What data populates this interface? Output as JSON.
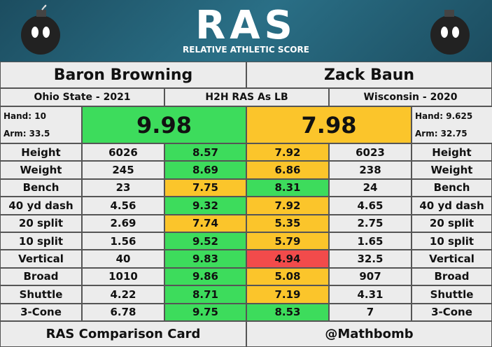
{
  "header": {
    "logo": "RAS",
    "tagline": "RELATIVE ATHLETIC SCORE"
  },
  "players": [
    {
      "name": "Baron Browning",
      "school": "Ohio State - 2021",
      "hand": "Hand: 10",
      "arm": "Arm: 33.5",
      "ras": 9.98,
      "ras_color": "#3ddc5c"
    },
    {
      "name": "Zack Baun",
      "school": "Wisconsin - 2020",
      "hand": "Hand: 9.625",
      "arm": "Arm: 32.75",
      "ras": 7.98,
      "ras_color": "#fbc52b"
    }
  ],
  "comparison_label": "H2H RAS As LB",
  "rows": [
    {
      "label": "Height",
      "left": 6026,
      "left_score": 8.57,
      "left_color": "#3ddc5c",
      "right_score": 7.92,
      "right_color": "#fbc52b",
      "right": 6023
    },
    {
      "label": "Weight",
      "left": 245,
      "left_score": 8.69,
      "left_color": "#3ddc5c",
      "right_score": 6.86,
      "right_color": "#fbc52b",
      "right": 238
    },
    {
      "label": "Bench",
      "left": 23,
      "left_score": 7.75,
      "left_color": "#fbc52b",
      "right_score": 8.31,
      "right_color": "#3ddc5c",
      "right": 24
    },
    {
      "label": "40 yd dash",
      "left": 4.56,
      "left_score": 9.32,
      "left_color": "#3ddc5c",
      "right_score": 7.92,
      "right_color": "#fbc52b",
      "right": 4.65
    },
    {
      "label": "20 split",
      "left": 2.69,
      "left_score": 7.74,
      "left_color": "#fbc52b",
      "right_score": 5.35,
      "right_color": "#fbc52b",
      "right": 2.75
    },
    {
      "label": "10 split",
      "left": 1.56,
      "left_score": 9.52,
      "left_color": "#3ddc5c",
      "right_score": 5.79,
      "right_color": "#fbc52b",
      "right": 1.65
    },
    {
      "label": "Vertical",
      "left": 40,
      "left_score": 9.83,
      "left_color": "#3ddc5c",
      "right_score": 4.94,
      "right_color": "#f24b4b",
      "right": 32.5
    },
    {
      "label": "Broad",
      "left": 1010,
      "left_score": 9.86,
      "left_color": "#3ddc5c",
      "right_score": 5.08,
      "right_color": "#fbc52b",
      "right": 907
    },
    {
      "label": "Shuttle",
      "left": 4.22,
      "left_score": 8.71,
      "left_color": "#3ddc5c",
      "right_score": 7.19,
      "right_color": "#fbc52b",
      "right": 4.31
    },
    {
      "label": "3-Cone",
      "left": 6.78,
      "left_score": 9.75,
      "left_color": "#3ddc5c",
      "right_score": 8.53,
      "right_color": "#3ddc5c",
      "right": 7
    }
  ],
  "footer": {
    "left": "RAS Comparison Card",
    "right": "@Mathbomb"
  }
}
